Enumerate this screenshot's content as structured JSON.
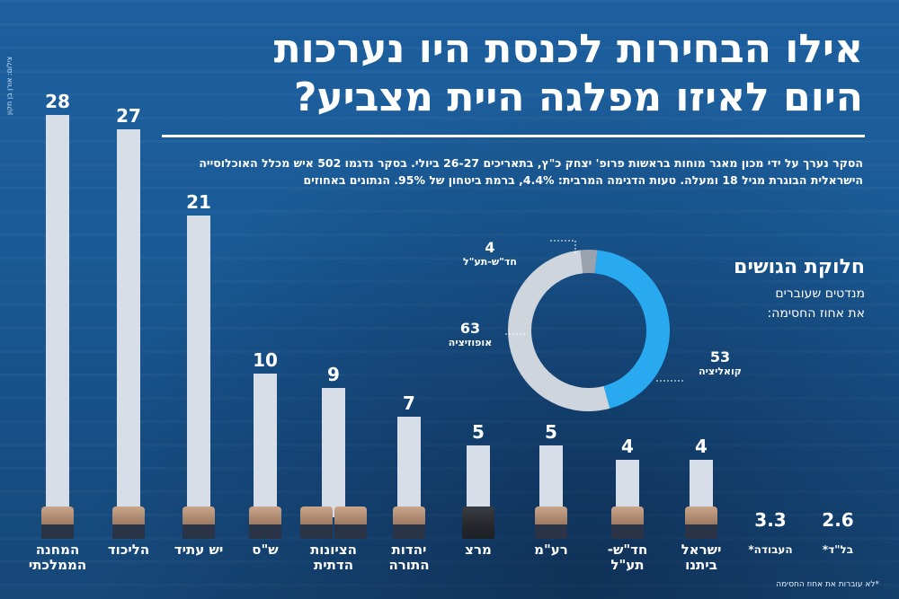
{
  "title": "אילו הבחירות לכנסת היו נערכות היום לאיזו מפלגה היית מצביע?",
  "subtitle": "הסקר נערך על ידי מכון מאגר מוחות בראשות פרופ' יצחק כ\"ץ, בתאריכים 26-27 ביולי. בסקר נדגמו 502 איש מכלל האוכלוסייה הישראלית הבוגרת מגיל 18 ומעלה. טעות הדגימה המרבית: 4.4%, ברמת ביטחון של 95%. הנתונים באחוזים",
  "credit": "צילום: אורן בן חקון",
  "bloc": {
    "title": "חלוקת הגושים",
    "subtitle_line1": "מנדטים שעוברים",
    "subtitle_line2": "את אחוז החסימה:"
  },
  "footnote": "*לא עוברות את אחוז החסימה",
  "colors": {
    "bar": "#d7dee7",
    "coalition": "#29aaf0",
    "opposition": "#cfd5dd",
    "hadash": "#9aa3ad",
    "text": "#ffffff"
  },
  "chart_data": [
    {
      "type": "bar",
      "categories": [
        "המחנה הממלכתי",
        "הליכוד",
        "יש עתיד",
        "ש\"ס",
        "הציונות הדתית",
        "יהדות התורה",
        "מרצ",
        "רע\"מ",
        "חד\"ש-תע\"ל",
        "ישראל ביתנו",
        "העבודה*",
        "בל\"ד*"
      ],
      "values": [
        28,
        27,
        21,
        10,
        9,
        7,
        5,
        5,
        4,
        4,
        3.3,
        2.6
      ],
      "value_labels": [
        "28",
        "27",
        "21",
        "10",
        "9",
        "7",
        "5",
        "5",
        "4",
        "4",
        "3.3",
        "2.6"
      ],
      "category_labels": [
        [
          "המחנה",
          "הממלכתי"
        ],
        [
          "הליכוד"
        ],
        [
          "יש עתיד"
        ],
        [
          "ש\"ס"
        ],
        [
          "הציונות",
          "הדתית"
        ],
        [
          "יהדות",
          "התורה"
        ],
        [
          "מרצ"
        ],
        [
          "רע\"מ"
        ],
        [
          "חד\"ש-",
          "תע\"ל"
        ],
        [
          "ישראל",
          "ביתנו"
        ],
        [
          "העבודה*"
        ],
        [
          "בל\"ד*"
        ]
      ],
      "drawn_bar": [
        true,
        true,
        true,
        true,
        true,
        true,
        true,
        true,
        true,
        true,
        false,
        false
      ],
      "ylim": [
        0,
        28
      ]
    },
    {
      "type": "pie",
      "title": "חלוקת הגושים",
      "labels": [
        "קואליציה",
        "אופוזיציה",
        "חד\"ש-תע\"ל"
      ],
      "values": [
        53,
        63,
        4
      ],
      "colors": [
        "#29aaf0",
        "#cfd5dd",
        "#9aa3ad"
      ]
    }
  ]
}
